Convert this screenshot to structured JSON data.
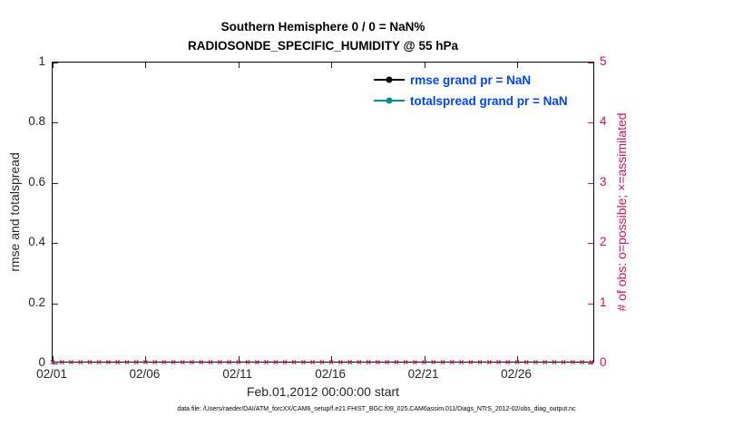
{
  "figure": {
    "title_line1": "Southern Hemisphere 0 / 0 = NaN%",
    "title_line2": "RADIOSONDE_SPECIFIC_HUMIDITY @ 55 hPa",
    "xlabel": "Feb.01,2012 00:00:00 start",
    "ylabel_left": "rmse and totalspread",
    "ylabel_right": "# of obs: o=possible; ×=assimilated",
    "caption": "data file: /Users/raeder/DAI/ATM_forcXX/CAM6_setup/f.e21.FHIST_BGC.f09_025.CAM6assim.011/Diags_NTrS_2012-02/obs_diag_output.nc"
  },
  "colors": {
    "pink": "#d0145a",
    "teal": "#009090",
    "legend_text": "#0044ff",
    "axis": "#262626",
    "rmse": "#000000"
  },
  "legend": {
    "text_color": "#0044ff",
    "items": [
      {
        "label": "rmse grand pr = NaN",
        "color": "#000000"
      },
      {
        "label": "totalspread grand pr = NaN",
        "color": "#009090"
      }
    ]
  },
  "chart_data": {
    "type": "line",
    "title": "Southern Hemisphere 0 / 0 = NaN% | RADIOSONDE_SPECIFIC_HUMIDITY @ 55 hPa",
    "xlabel": "Feb.01,2012 00:00:00 start",
    "grid": false,
    "legend_position": "upper right inside",
    "x_axis": {
      "range_days": [
        0,
        29.2
      ],
      "ticks": [
        {
          "label": "02/01",
          "day": 0
        },
        {
          "label": "02/06",
          "day": 5
        },
        {
          "label": "02/11",
          "day": 10
        },
        {
          "label": "02/16",
          "day": 15
        },
        {
          "label": "02/21",
          "day": 20
        },
        {
          "label": "02/26",
          "day": 25
        }
      ]
    },
    "y_left": {
      "label": "rmse and totalspread",
      "range": [
        0,
        1
      ],
      "ticks": [
        {
          "label": "0",
          "value": 0
        },
        {
          "label": "0.2",
          "value": 0.2
        },
        {
          "label": "0.4",
          "value": 0.4
        },
        {
          "label": "0.6",
          "value": 0.6
        },
        {
          "label": "0.8",
          "value": 0.8
        },
        {
          "label": "1",
          "value": 1
        }
      ]
    },
    "y_right": {
      "label": "# of obs: o=possible; ×=assimilated",
      "range": [
        0,
        5
      ],
      "ticks": [
        {
          "label": "0",
          "value": 0
        },
        {
          "label": "1",
          "value": 1
        },
        {
          "label": "2",
          "value": 2
        },
        {
          "label": "3",
          "value": 3
        },
        {
          "label": "4",
          "value": 4
        },
        {
          "label": "5",
          "value": 5
        }
      ]
    },
    "series": [
      {
        "name": "rmse grand pr",
        "summary_value": "NaN",
        "color": "#000000",
        "axis": "left",
        "points": []
      },
      {
        "name": "totalspread grand pr",
        "summary_value": "NaN",
        "color": "#009090",
        "axis": "left",
        "points": []
      },
      {
        "name": "observations (o=possible, ×=assimilated)",
        "marker": "×",
        "color": "#d0145a",
        "axis": "right",
        "x_days": {
          "start": 0,
          "end": 29,
          "step": 0.5
        },
        "constant_value": 0
      }
    ]
  }
}
